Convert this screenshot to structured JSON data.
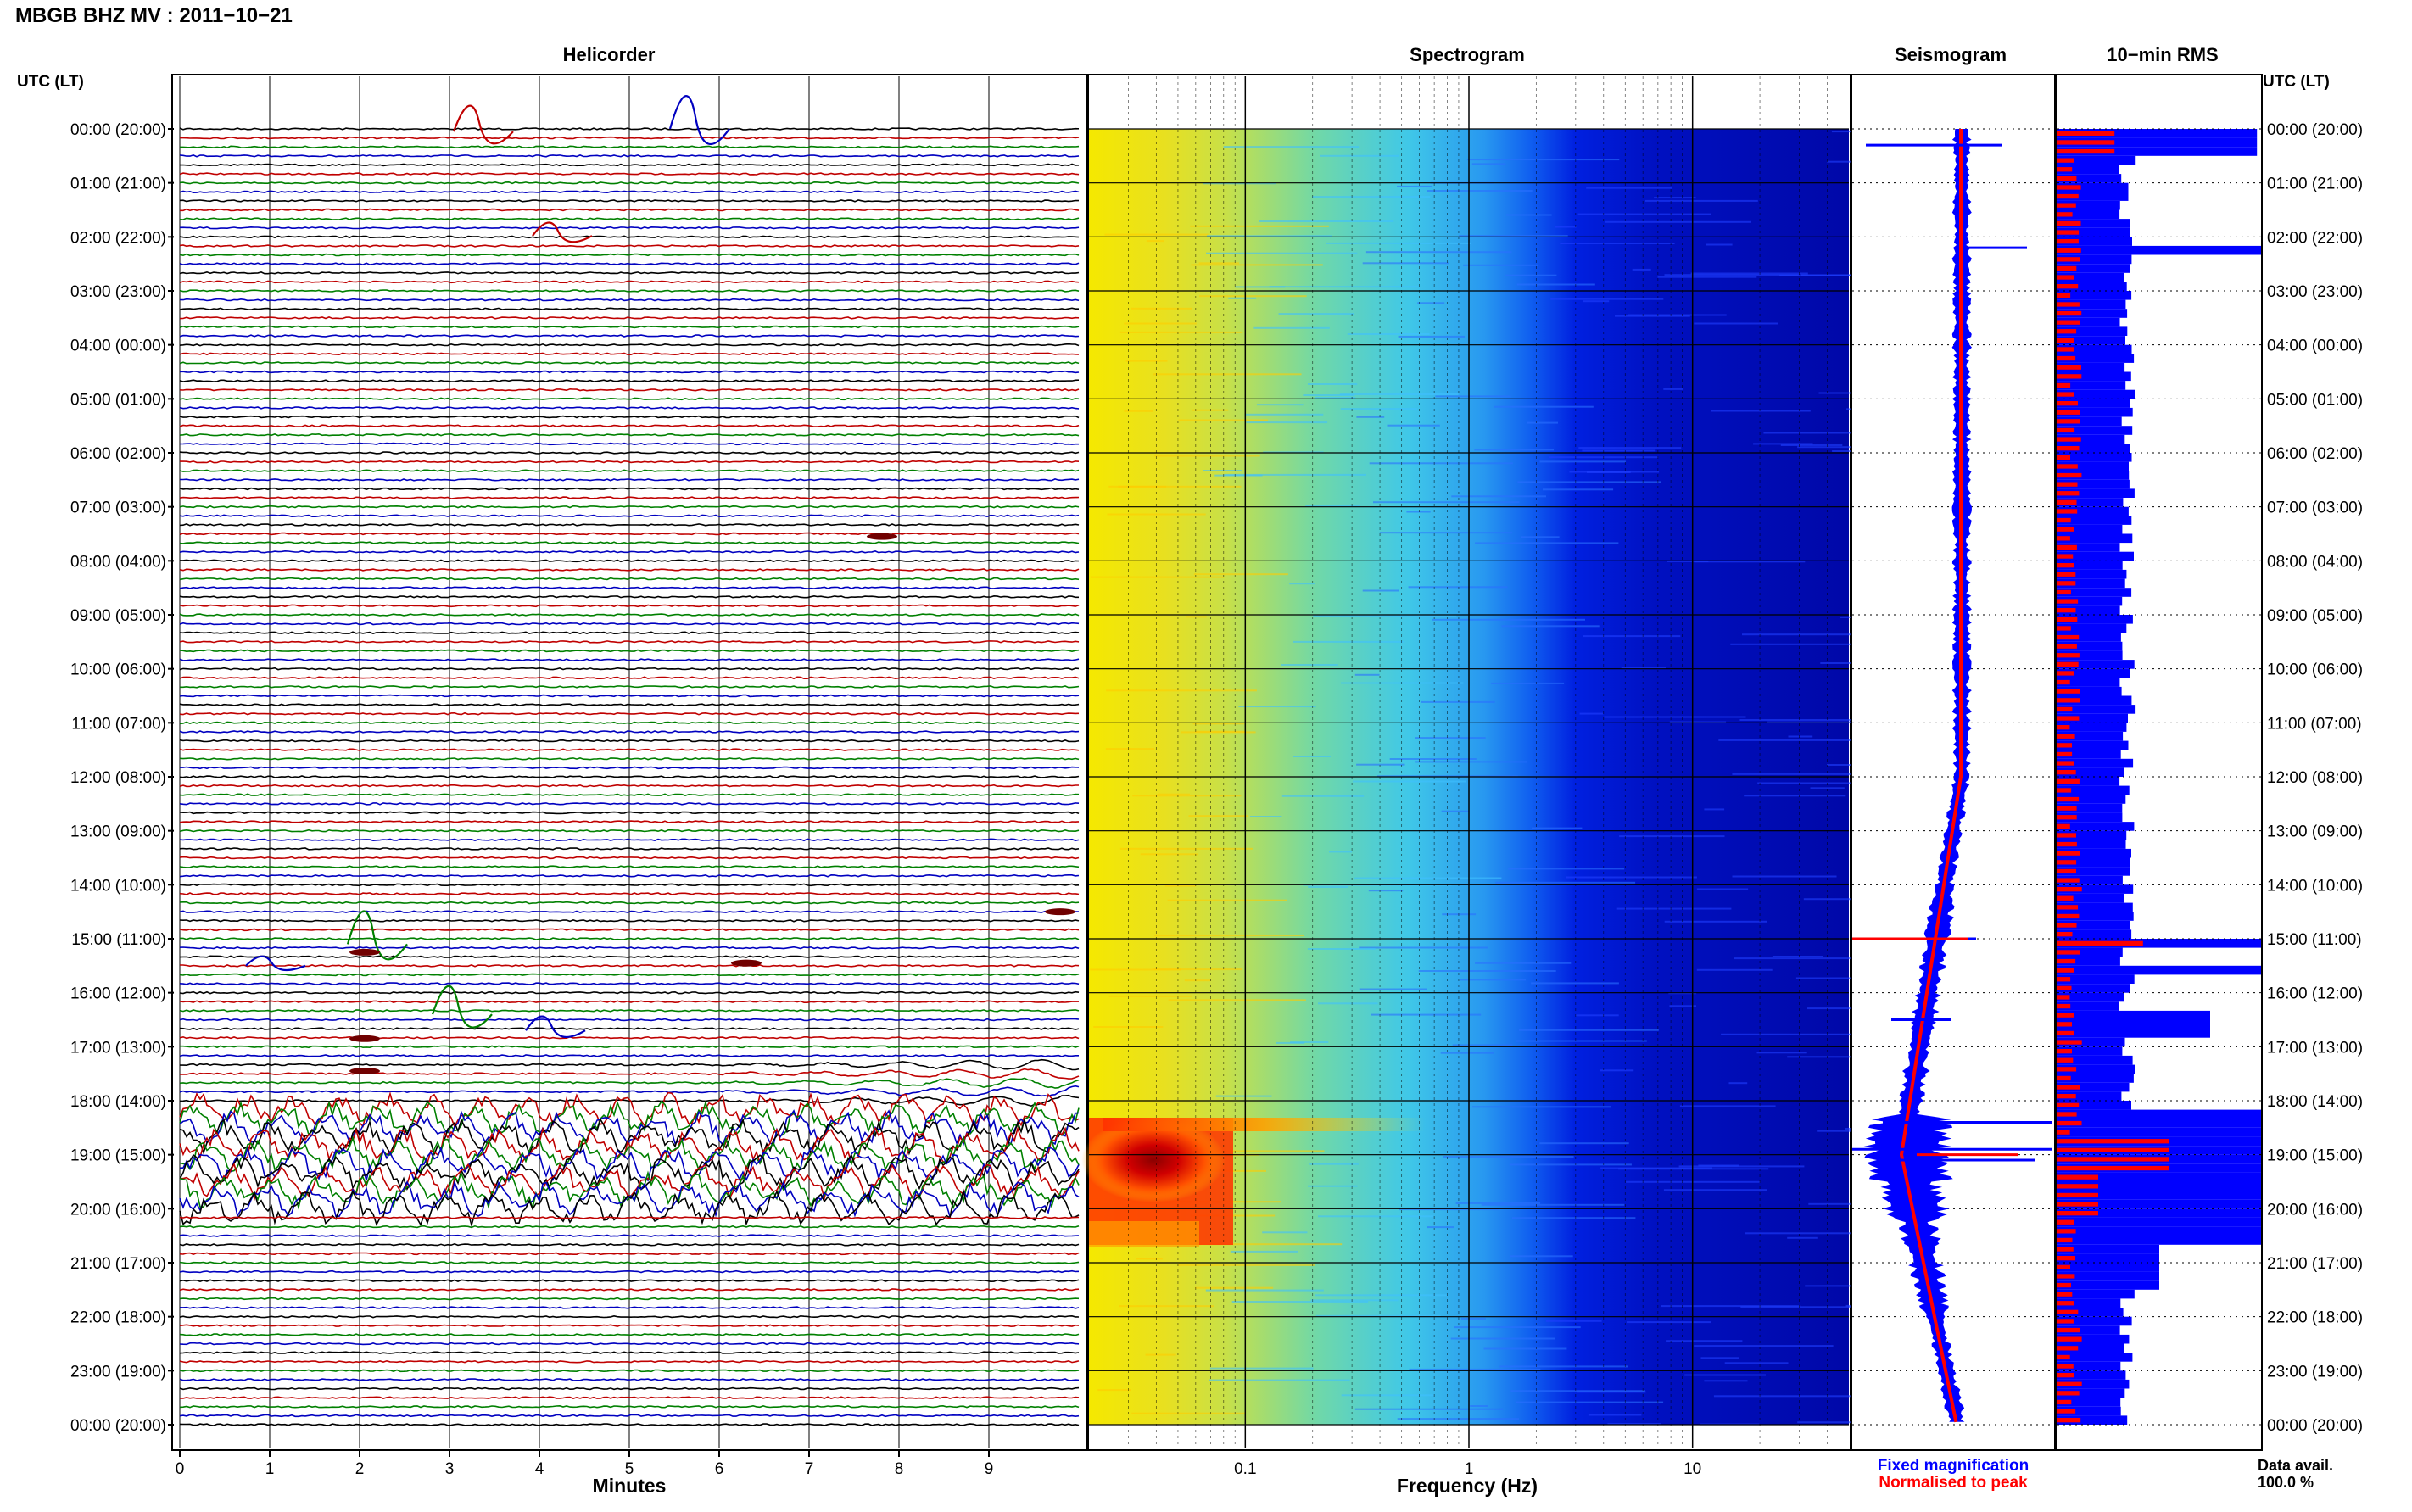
{
  "header": {
    "title": "MBGB BHZ MV : 2011−10−21"
  },
  "panels": {
    "helicorder": "Helicorder",
    "spectrogram": "Spectrogram",
    "seismogram": "Seismogram",
    "rms": "10−min RMS"
  },
  "axis_labels": {
    "utc_left": "UTC (LT)",
    "utc_right": "UTC (LT)",
    "minutes": "Minutes",
    "frequency": "Frequency (Hz)"
  },
  "legend": {
    "fixed": "Fixed magnification",
    "normalised": "Normalised to peak",
    "fixed_color": "#0000ff",
    "normalised_color": "#ff0000"
  },
  "data_avail": {
    "label": "Data avail.",
    "value": "100.0 %"
  },
  "chart_data": [
    {
      "type": "line",
      "title": "Helicorder",
      "xlabel": "Minutes",
      "ylabel": "UTC (LT)",
      "xlim": [
        0,
        10
      ],
      "x_ticks": [
        "0",
        "1",
        "2",
        "3",
        "4",
        "5",
        "6",
        "7",
        "8",
        "9"
      ],
      "y_ticks_left": [
        "00:00 (20:00)",
        "01:00 (21:00)",
        "02:00 (22:00)",
        "03:00 (23:00)",
        "04:00 (00:00)",
        "05:00 (01:00)",
        "06:00 (02:00)",
        "07:00 (03:00)",
        "08:00 (04:00)",
        "09:00 (05:00)",
        "10:00 (06:00)",
        "11:00 (07:00)",
        "12:00 (08:00)",
        "13:00 (09:00)",
        "14:00 (10:00)",
        "15:00 (11:00)",
        "16:00 (12:00)",
        "17:00 (13:00)",
        "18:00 (14:00)",
        "19:00 (15:00)",
        "20:00 (16:00)",
        "21:00 (17:00)",
        "22:00 (18:00)",
        "23:00 (19:00)",
        "00:00 (20:00)"
      ],
      "traces_per_hour": 6,
      "trace_colors": [
        "#000000",
        "#c00000",
        "#008000",
        "#0000c0"
      ],
      "notes_events": [
        "transients near 00:00, 02:00, 15:00–17:30",
        "strong tremor/oscillations 18:00–20:00"
      ]
    },
    {
      "type": "heatmap",
      "title": "Spectrogram",
      "xlabel": "Frequency (Hz)",
      "x_scale": "log",
      "xlim": [
        0.02,
        50
      ],
      "x_ticks": [
        "0.1",
        "1",
        "10"
      ],
      "colormap": [
        "#00008b",
        "#0000ff",
        "#00bfff",
        "#40e0d0",
        "#ffff00",
        "#ff8c00",
        "#ff0000",
        "#8b0000"
      ],
      "high_energy": {
        "time_start": "18:40",
        "time_end": "20:20",
        "freq_max_hz": 0.1
      }
    },
    {
      "type": "line",
      "title": "Seismogram",
      "series": [
        {
          "name": "Fixed magnification",
          "color": "#0000ff"
        },
        {
          "name": "Normalised to peak",
          "color": "#ff0000"
        }
      ],
      "notes": "large amplitude burst around 18:30–19:15 UTC"
    },
    {
      "type": "bar",
      "title": "10−min RMS",
      "orientation": "horizontal",
      "bins_per_hour": 6,
      "series": [
        {
          "name": "Fixed magnification",
          "color": "#0000ff"
        },
        {
          "name": "Normalised to peak",
          "color": "#ff0000"
        }
      ]
    }
  ]
}
